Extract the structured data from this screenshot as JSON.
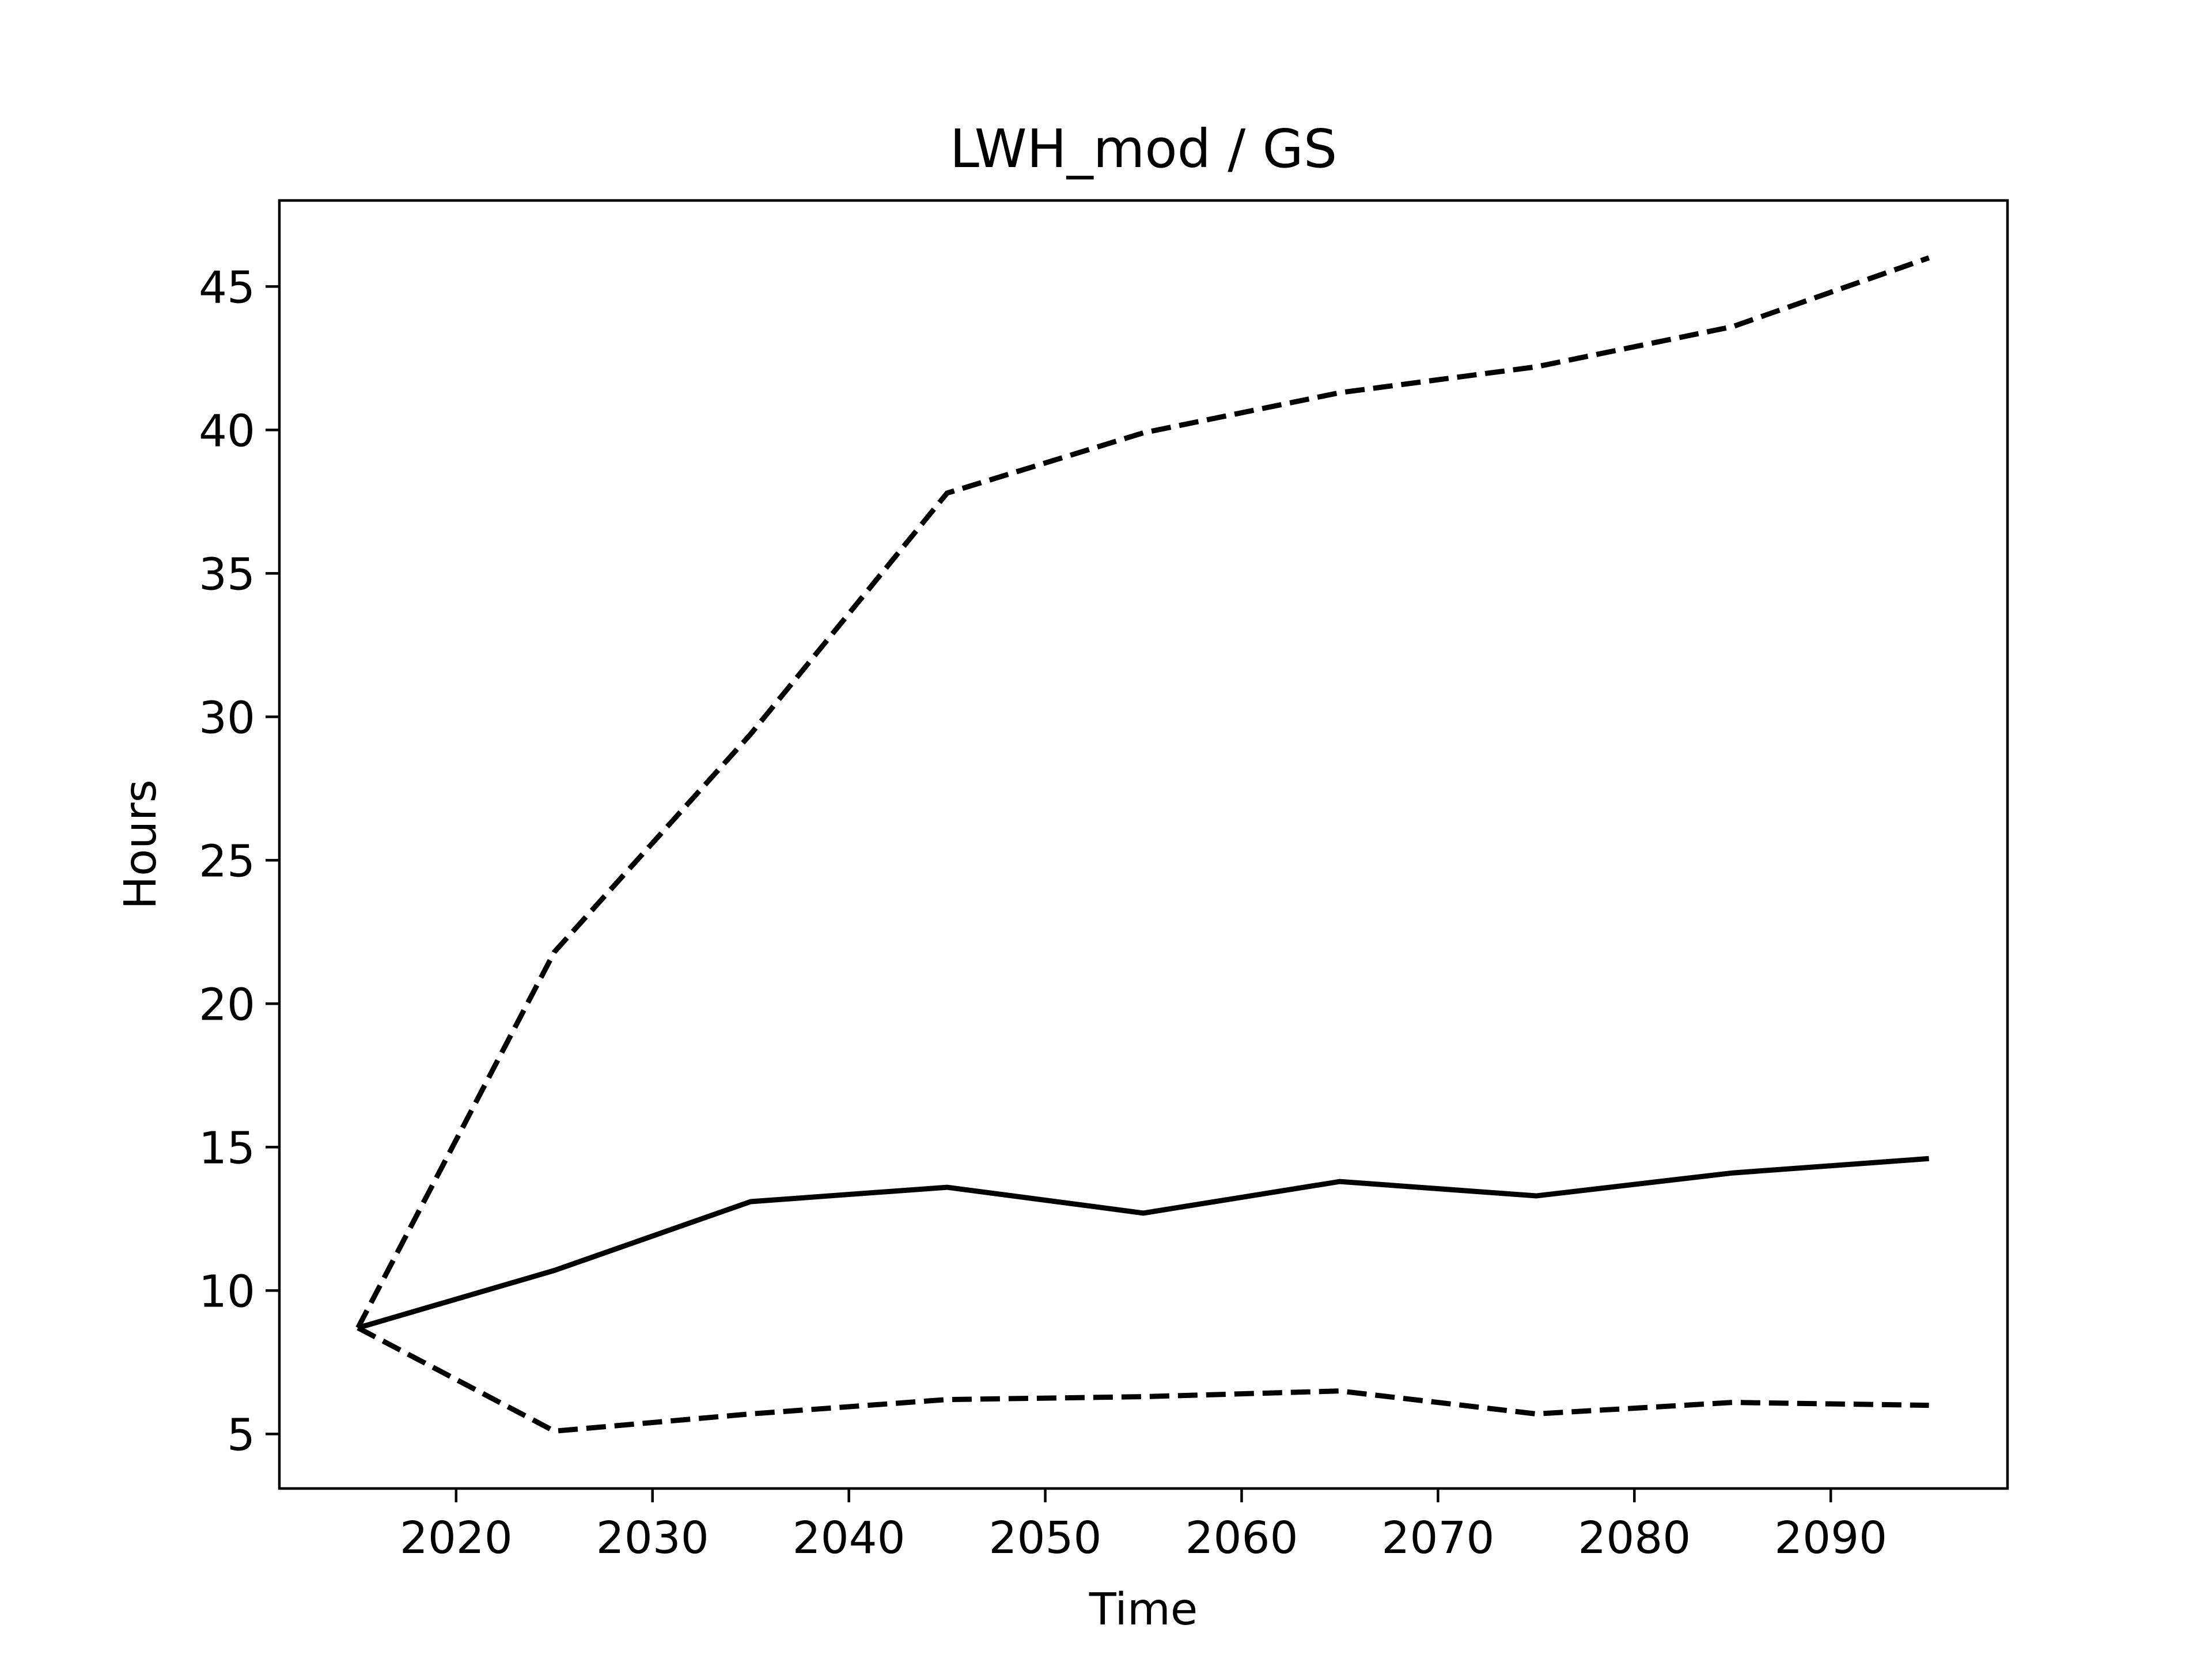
{
  "chart_data": {
    "type": "line",
    "title": "LWH_mod / GS",
    "xlabel": "Time",
    "ylabel": "Hours",
    "xlim": [
      2011,
      2099
    ],
    "ylim": [
      3.1,
      48.0
    ],
    "xticks": [
      2020,
      2030,
      2040,
      2050,
      2060,
      2070,
      2080,
      2090
    ],
    "yticks": [
      5,
      10,
      15,
      20,
      25,
      30,
      35,
      40,
      45
    ],
    "grid": false,
    "legend": "none",
    "line_color": "#000000",
    "x": [
      2015,
      2025,
      2035,
      2045,
      2055,
      2065,
      2075,
      2085,
      2095
    ],
    "series": [
      {
        "style": "dashed",
        "values": [
          8.7,
          21.8,
          29.4,
          37.8,
          39.9,
          41.3,
          42.2,
          43.6,
          46.0
        ]
      },
      {
        "style": "solid",
        "values": [
          8.7,
          10.7,
          13.1,
          13.6,
          12.7,
          13.8,
          13.3,
          14.1,
          14.6
        ]
      },
      {
        "style": "dashed",
        "values": [
          8.7,
          5.1,
          5.7,
          6.2,
          6.3,
          6.5,
          5.7,
          6.1,
          6.0
        ]
      }
    ]
  }
}
